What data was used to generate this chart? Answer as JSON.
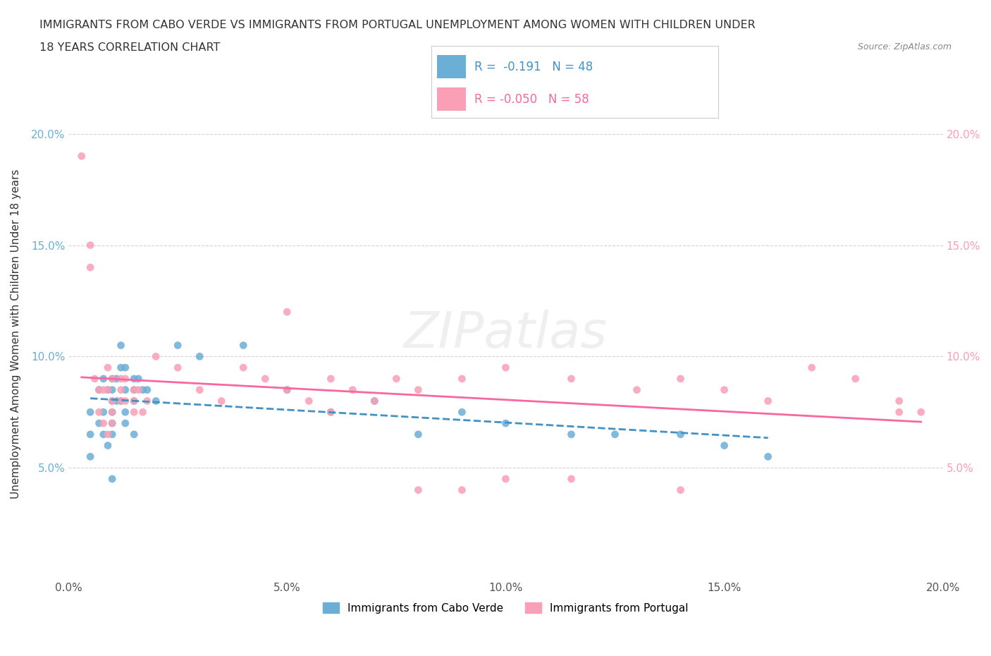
{
  "title_line1": "IMMIGRANTS FROM CABO VERDE VS IMMIGRANTS FROM PORTUGAL UNEMPLOYMENT AMONG WOMEN WITH CHILDREN UNDER",
  "title_line2": "18 YEARS CORRELATION CHART",
  "source": "Source: ZipAtlas.com",
  "xlabel": "",
  "ylabel": "Unemployment Among Women with Children Under 18 years",
  "xticklabels": [
    "0.0%",
    "5.0%",
    "10.0%",
    "15.0%",
    "20.0%"
  ],
  "yticklabels": [
    "5.0%",
    "10.0%",
    "15.0%",
    "20.0%"
  ],
  "xlim": [
    0.0,
    0.2
  ],
  "ylim": [
    0.0,
    0.22
  ],
  "legend_cabo_verde_R": "-0.191",
  "legend_cabo_verde_N": "48",
  "legend_portugal_R": "-0.050",
  "legend_portugal_N": "58",
  "color_cabo_verde": "#6baed6",
  "color_portugal": "#fa9fb5",
  "color_cabo_verde_line": "#4292c6",
  "color_portugal_line": "#f768a1",
  "watermark": "ZIPatlas",
  "cabo_verde_x": [
    0.005,
    0.005,
    0.005,
    0.007,
    0.007,
    0.008,
    0.008,
    0.008,
    0.009,
    0.009,
    0.01,
    0.01,
    0.01,
    0.01,
    0.01,
    0.01,
    0.01,
    0.011,
    0.011,
    0.012,
    0.012,
    0.012,
    0.013,
    0.013,
    0.013,
    0.013,
    0.015,
    0.015,
    0.015,
    0.015,
    0.016,
    0.017,
    0.018,
    0.02,
    0.025,
    0.03,
    0.04,
    0.05,
    0.06,
    0.07,
    0.08,
    0.09,
    0.1,
    0.115,
    0.125,
    0.14,
    0.15,
    0.16
  ],
  "cabo_verde_y": [
    0.075,
    0.065,
    0.055,
    0.085,
    0.07,
    0.09,
    0.075,
    0.065,
    0.085,
    0.06,
    0.09,
    0.085,
    0.08,
    0.075,
    0.07,
    0.065,
    0.045,
    0.09,
    0.08,
    0.105,
    0.095,
    0.08,
    0.095,
    0.085,
    0.075,
    0.07,
    0.09,
    0.085,
    0.08,
    0.065,
    0.09,
    0.085,
    0.085,
    0.08,
    0.105,
    0.1,
    0.105,
    0.085,
    0.075,
    0.08,
    0.065,
    0.075,
    0.07,
    0.065,
    0.065,
    0.065,
    0.06,
    0.055
  ],
  "portugal_x": [
    0.003,
    0.005,
    0.005,
    0.006,
    0.007,
    0.007,
    0.008,
    0.008,
    0.009,
    0.009,
    0.009,
    0.01,
    0.01,
    0.01,
    0.01,
    0.012,
    0.012,
    0.012,
    0.013,
    0.013,
    0.015,
    0.015,
    0.015,
    0.016,
    0.017,
    0.018,
    0.02,
    0.025,
    0.03,
    0.035,
    0.04,
    0.045,
    0.05,
    0.055,
    0.06,
    0.065,
    0.07,
    0.075,
    0.08,
    0.09,
    0.1,
    0.115,
    0.13,
    0.14,
    0.15,
    0.16,
    0.17,
    0.18,
    0.19,
    0.195,
    0.05,
    0.06,
    0.08,
    0.09,
    0.1,
    0.115,
    0.14,
    0.19
  ],
  "portugal_y": [
    0.19,
    0.15,
    0.14,
    0.09,
    0.085,
    0.075,
    0.085,
    0.07,
    0.095,
    0.085,
    0.065,
    0.09,
    0.08,
    0.075,
    0.07,
    0.09,
    0.085,
    0.08,
    0.09,
    0.08,
    0.085,
    0.08,
    0.075,
    0.085,
    0.075,
    0.08,
    0.1,
    0.095,
    0.085,
    0.08,
    0.095,
    0.09,
    0.085,
    0.08,
    0.09,
    0.085,
    0.08,
    0.09,
    0.085,
    0.09,
    0.095,
    0.09,
    0.085,
    0.09,
    0.085,
    0.08,
    0.095,
    0.09,
    0.08,
    0.075,
    0.12,
    0.075,
    0.04,
    0.04,
    0.045,
    0.045,
    0.04,
    0.075
  ]
}
